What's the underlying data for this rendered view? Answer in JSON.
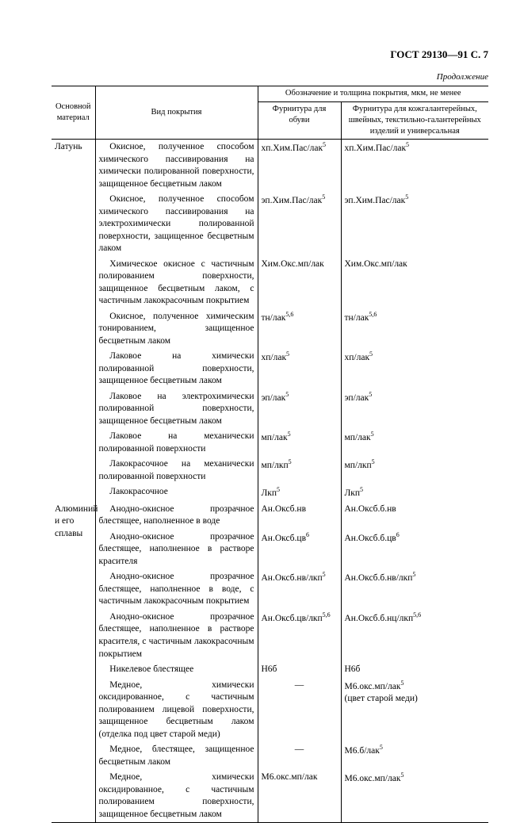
{
  "header": "ГОСТ 29130—91 С. 7",
  "continuation": "Продолжение",
  "th": {
    "material": "Основной материал",
    "coating": "Вид покрытия",
    "spanTitle": "Обозначение и толщина покрытия, мкм, не менее",
    "col3": "Фурнитура для обуви",
    "col4": "Фурнитура для кожгалантерейных, швейных, текстильно-галантерейных изделий и универсальная"
  },
  "materials": {
    "m1": "Латунь",
    "m2": "Алюминий и его сплавы"
  },
  "rows": [
    {
      "c": "Окисное, полученное способом химического пассивирования на химически полированной поверхности, защищенное бесцветным лаком",
      "v1_html": "хп.Хим.Пас/лак<sup>5</sup>",
      "v2_html": "хп.Хим.Пас/лак<sup>5</sup>"
    },
    {
      "c": "Окисное, полученное способом химического пассивирования на электрохимически полированной поверхности, защищенное бесцветным лаком",
      "v1_html": "эп.Хим.Пас/лак<sup>5</sup>",
      "v2_html": "эп.Хим.Пас/лак<sup>5</sup>"
    },
    {
      "c": "Химическое окисное с частичным полированием поверхности, защищенное бесцветным лаком, с частичным лакокрасочным покрытием",
      "v1_html": "Хим.Окс.мп/лак",
      "v2_html": "Хим.Окс.мп/лак"
    },
    {
      "c": "Окисное, полученное химическим тонированием, защищенное бесцветным лаком",
      "v1_html": "тн/лак<sup>5,6</sup>",
      "v2_html": "тн/лак<sup>5,6</sup>"
    },
    {
      "c": "Лаковое на химически полированной поверхности, защищенное бесцветным лаком",
      "v1_html": "хп/лак<sup>5</sup>",
      "v2_html": "хп/лак<sup>5</sup>"
    },
    {
      "c": "Лаковое на электрохимически полированной поверхности, защищенное бесцветным лаком",
      "v1_html": "эп/лак<sup>5</sup>",
      "v2_html": "эп/лак<sup>5</sup>"
    },
    {
      "c": "Лаковое на механически полированной поверхности",
      "v1_html": "мп/лак<sup>5</sup>",
      "v2_html": "мп/лак<sup>5</sup>"
    },
    {
      "c": "Лакокрасочное на механически полированной поверхности",
      "v1_html": "мп/лкп<sup>5</sup>",
      "v2_html": "мп/лкп<sup>5</sup>"
    },
    {
      "c": "Лакокрасочное",
      "v1_html": "Лкп<sup>5</sup>",
      "v2_html": "Лкп<sup>5</sup>"
    },
    {
      "c": "Анодно-окисное прозрачное блестящее, наполненное в воде",
      "v1_html": "Ан.Оксб.нв",
      "v2_html": "Ан.Оксб.б.нв"
    },
    {
      "c": "Анодно-окисное прозрачное блестящее, наполненное в растворе красителя",
      "v1_html": "Ан.Оксб.цв<sup>6</sup>",
      "v2_html": "Ан.Оксб.б.цв<sup>6</sup>"
    },
    {
      "c": "Анодно-окисное прозрачное блестящее, наполненное в воде, с частичным лакокрасочным покрытием",
      "v1_html": "Ан.Оксб.нв/лкп<sup>5</sup>",
      "v2_html": "Ан.Оксб.б.нв/лкп<sup>5</sup>"
    },
    {
      "c": "Анодно-окисное прозрачное блестящее, наполненное в растворе красителя, с частичным лакокрасочным покрытием",
      "v1_html": "Ан.Оксб.цв/лкп<sup>5,6</sup>",
      "v2_html": "Ан.Оксб.б.нц/лкп<sup>5,6</sup>"
    },
    {
      "c": "Никелевое блестящее",
      "v1_html": "Н6б",
      "v2_html": "Н6б"
    },
    {
      "c": "Медное, химически оксидированное, с частичным полированием лицевой поверхности, защищенное бесцветным лаком (отделка под цвет старой меди)",
      "v1_html": "—",
      "v2_html": "М6.окс.мп/лак<sup>5</sup><br>(цвет старой меди)"
    },
    {
      "c": "Медное, блестящее, защищенное бесцветным лаком",
      "v1_html": "—",
      "v2_html": "М6.б/лак<sup>5</sup>"
    },
    {
      "c": "Медное, химически оксидированное, с частичным полированием поверхности, защищенное бесцветным лаком",
      "v1_html": "М6.окс.мп/лак",
      "v2_html": "М6.окс.мп/лак<sup>5</sup>"
    }
  ]
}
